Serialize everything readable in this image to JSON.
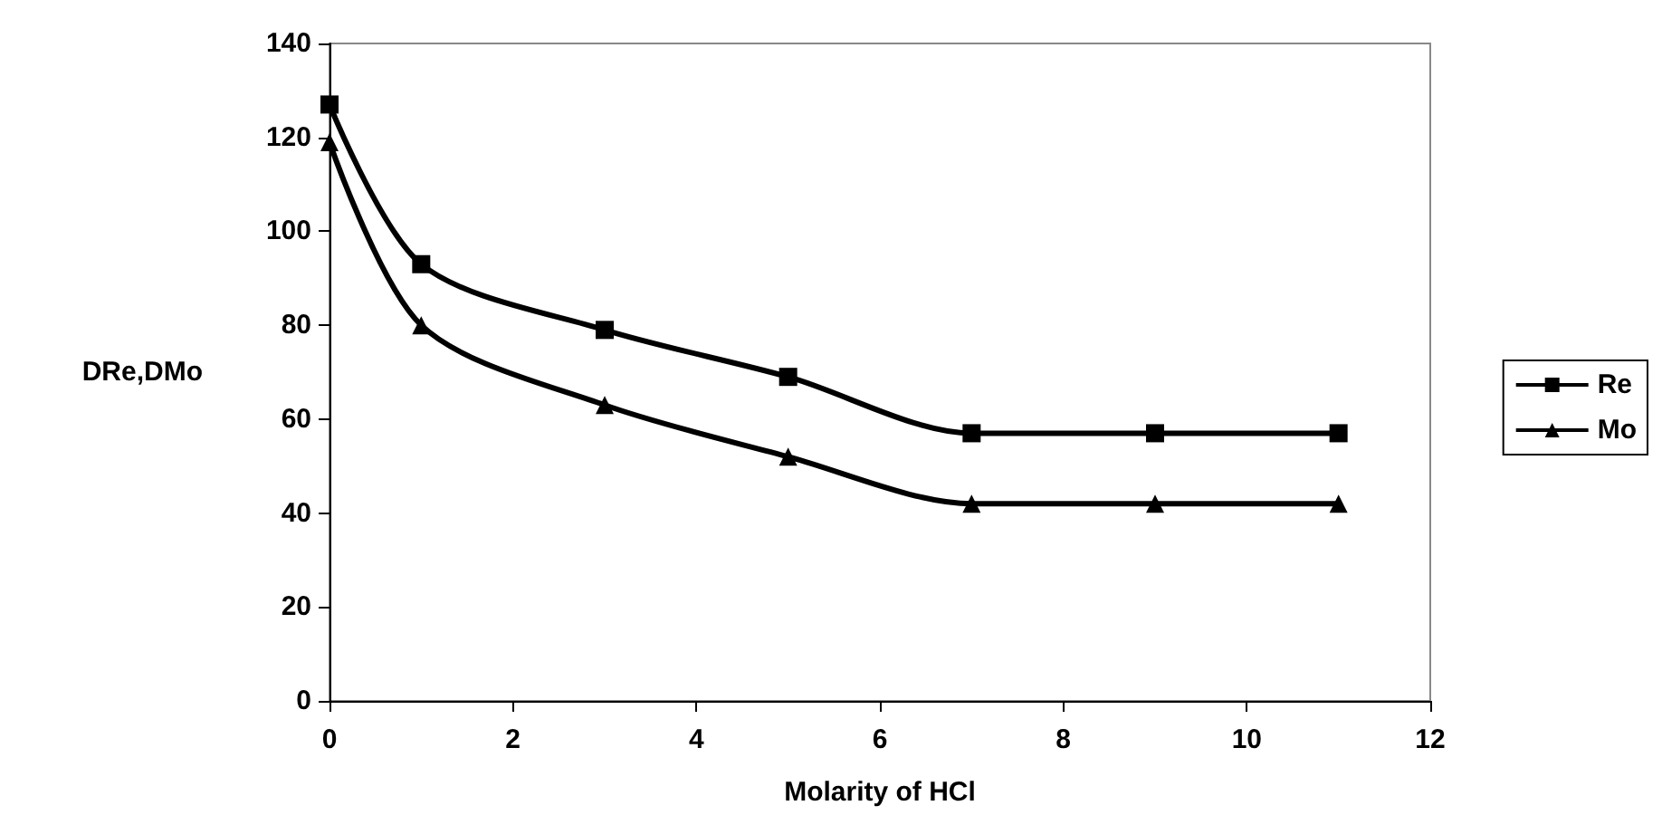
{
  "chart_data": {
    "type": "line",
    "xlabel": "Molarity of HCl",
    "ylabel": "DRe,DMo",
    "x": [
      0,
      1,
      3,
      5,
      7,
      9,
      11
    ],
    "series": [
      {
        "name": "Re",
        "color": "#000000",
        "marker": "square",
        "values": [
          127,
          93,
          79,
          69,
          57,
          57,
          57
        ]
      },
      {
        "name": "Mo",
        "color": "#000000",
        "marker": "triangle",
        "values": [
          119,
          80,
          63,
          52,
          42,
          42,
          42
        ]
      }
    ],
    "xlim": [
      0,
      12
    ],
    "xticks": [
      0,
      2,
      4,
      6,
      8,
      10,
      12
    ],
    "ylim": [
      0,
      140
    ],
    "yticks": [
      0,
      20,
      40,
      60,
      80,
      100,
      120,
      140
    ],
    "legend": "right",
    "line_style": "solid"
  }
}
